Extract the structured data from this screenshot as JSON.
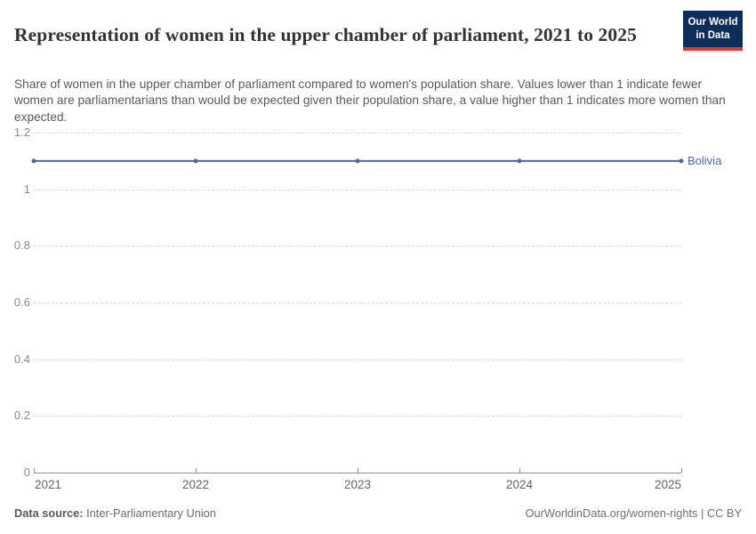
{
  "header": {
    "title": "Representation of women in the upper chamber of parliament, 2021 to 2025",
    "logo": {
      "line1": "Our World",
      "line2": "in Data",
      "bg_color": "#0d2e5a",
      "accent_color": "#e0372e"
    }
  },
  "subtitle": "Share of women in the upper chamber of parliament compared to women's population share. Values lower than 1 indicate fewer women are parliamentarians than would be expected given their population share, a value higher than 1 indicates more women than expected.",
  "chart_data": {
    "type": "line",
    "title": "Representation of women in the upper chamber of parliament, 2021 to 2025",
    "x": [
      2021,
      2022,
      2023,
      2024,
      2025
    ],
    "x_tick_labels": [
      "2021",
      "2022",
      "2023",
      "2024",
      "2025"
    ],
    "series": [
      {
        "name": "Bolivia",
        "color": "#4c6aa5",
        "values": [
          1.1,
          1.1,
          1.1,
          1.1,
          1.1
        ]
      }
    ],
    "ylim": [
      0,
      1.2
    ],
    "yticks": [
      0,
      0.2,
      0.4,
      0.6,
      0.8,
      1,
      1.2
    ],
    "ytick_labels": [
      "0",
      "0.2",
      "0.4",
      "0.6",
      "0.8",
      "1",
      "1.2"
    ],
    "grid": "horizontal-dashed",
    "legend_position": "end-of-line"
  },
  "footer": {
    "source_label": "Data source:",
    "source_value": "Inter-Parliamentary Union",
    "rights": "OurWorldinData.org/women-rights | CC BY"
  },
  "colors": {
    "series_blue": "#4c6aa5",
    "gridline": "#dcdcdc",
    "axis_line": "#8f8f8f",
    "y_tick_label": "#8b8b8b",
    "x_tick_label": "#636363",
    "title_text": "#333333",
    "subtitle_text": "#5a5a5a",
    "footer_text": "#6b6b6b"
  }
}
